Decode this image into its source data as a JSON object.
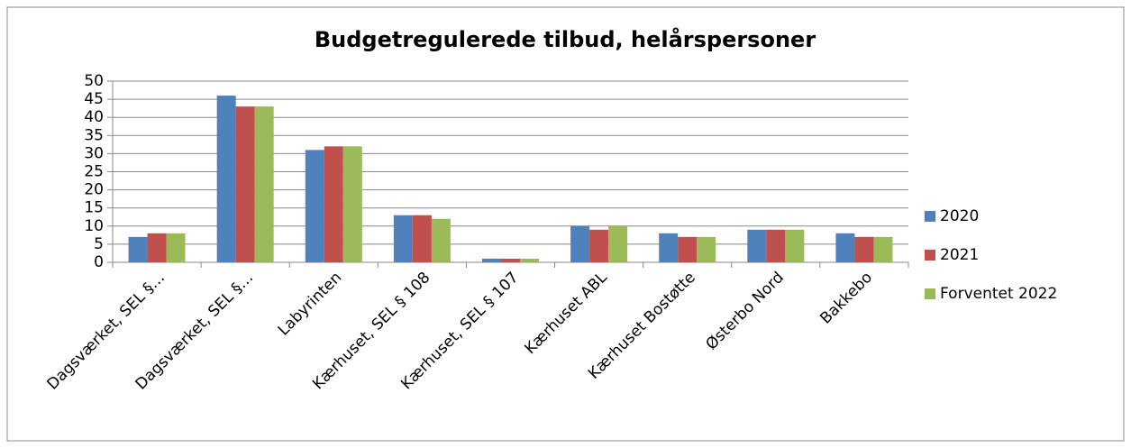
{
  "chart_data": {
    "type": "bar",
    "title": "Budgetregulerede tilbud, helårspersoner",
    "categories": [
      "Dagsværket, SEL §…",
      "Dagsværket, SEL §…",
      "Labyrinten",
      "Kærhuset, SEL § 108",
      "Kærhuset, SEL § 107",
      "Kærhuset ABL",
      "Kærhuset Bostøtte",
      "Østerbo Nord",
      "Bakkebo"
    ],
    "series": [
      {
        "name": "2020",
        "color": "#4f81bd",
        "values": [
          7,
          46,
          31,
          13,
          1,
          10,
          8,
          9,
          8
        ]
      },
      {
        "name": "2021",
        "color": "#c0504d",
        "values": [
          8,
          43,
          32,
          13,
          1,
          9,
          7,
          9,
          7
        ]
      },
      {
        "name": "Forventet 2022",
        "color": "#9bbb59",
        "values": [
          8,
          43,
          32,
          12,
          1,
          10,
          7,
          9,
          7
        ]
      }
    ],
    "ylim": [
      0,
      50
    ],
    "yticks": [
      0,
      5,
      10,
      15,
      20,
      25,
      30,
      35,
      40,
      45,
      50
    ],
    "grid": true,
    "legend": "right"
  }
}
